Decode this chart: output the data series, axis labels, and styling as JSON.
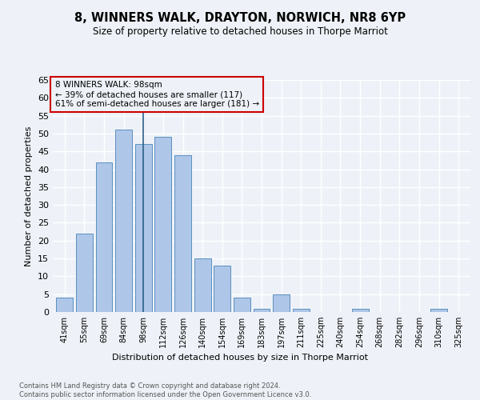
{
  "title": "8, WINNERS WALK, DRAYTON, NORWICH, NR8 6YP",
  "subtitle": "Size of property relative to detached houses in Thorpe Marriot",
  "xlabel": "Distribution of detached houses by size in Thorpe Marriot",
  "ylabel": "Number of detached properties",
  "footnote1": "Contains HM Land Registry data © Crown copyright and database right 2024.",
  "footnote2": "Contains public sector information licensed under the Open Government Licence v3.0.",
  "annotation_line1": "8 WINNERS WALK: 98sqm",
  "annotation_line2": "← 39% of detached houses are smaller (117)",
  "annotation_line3": "61% of semi-detached houses are larger (181) →",
  "bar_labels": [
    "41sqm",
    "55sqm",
    "69sqm",
    "84sqm",
    "98sqm",
    "112sqm",
    "126sqm",
    "140sqm",
    "154sqm",
    "169sqm",
    "183sqm",
    "197sqm",
    "211sqm",
    "225sqm",
    "240sqm",
    "254sqm",
    "268sqm",
    "282sqm",
    "296sqm",
    "310sqm",
    "325sqm"
  ],
  "bar_values": [
    4,
    22,
    42,
    51,
    47,
    49,
    44,
    15,
    13,
    4,
    1,
    5,
    1,
    0,
    0,
    1,
    0,
    0,
    0,
    1,
    0
  ],
  "bar_color": "#aec6e8",
  "bar_edge_color": "#5a8fc0",
  "vline_x_index": 4,
  "vline_color": "#2c5f8a",
  "ylim": [
    0,
    65
  ],
  "yticks": [
    0,
    5,
    10,
    15,
    20,
    25,
    30,
    35,
    40,
    45,
    50,
    55,
    60,
    65
  ],
  "bg_color": "#eef2f8",
  "grid_color": "#ffffff",
  "annotation_box_color": "#cc0000"
}
